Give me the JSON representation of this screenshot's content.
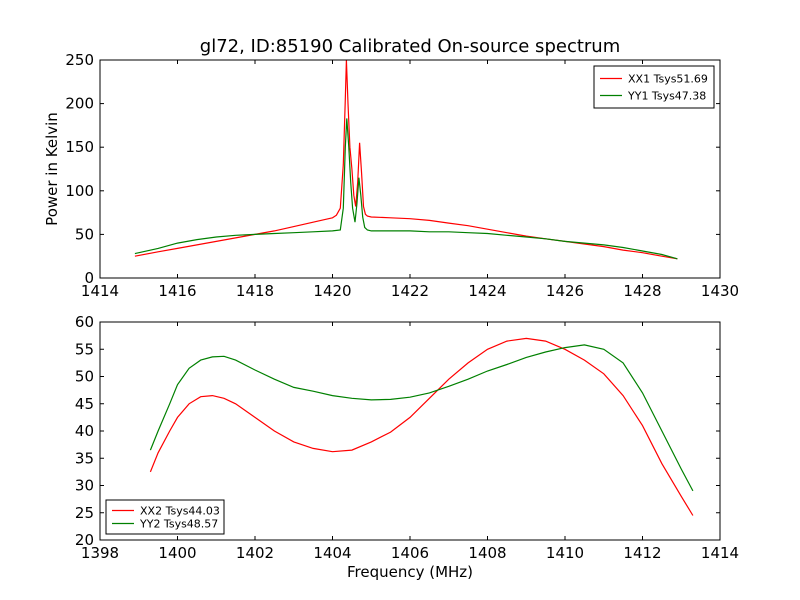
{
  "figure": {
    "title": "gl72, ID:85190 Calibrated On-source spectrum"
  },
  "chart_data": [
    {
      "type": "line",
      "title": "gl72, ID:85190 Calibrated On-source spectrum",
      "xlabel": "",
      "ylabel": "Power in Kelvin",
      "xlim": [
        1414,
        1430
      ],
      "ylim": [
        0,
        250
      ],
      "xticks": [
        "1414",
        "1416",
        "1418",
        "1420",
        "1422",
        "1424",
        "1426",
        "1428",
        "1430"
      ],
      "yticks": [
        "0",
        "50",
        "100",
        "150",
        "200",
        "250"
      ],
      "grid": false,
      "legend_position": "top-right",
      "series": [
        {
          "name": "XX1 Tsys51.69",
          "color": "#ff0000",
          "x": [
            1414.9,
            1415.5,
            1416.0,
            1416.5,
            1417.0,
            1417.5,
            1418.0,
            1418.5,
            1419.0,
            1419.5,
            1419.8,
            1420.0,
            1420.1,
            1420.2,
            1420.28,
            1420.33,
            1420.36,
            1420.4,
            1420.45,
            1420.5,
            1420.55,
            1420.6,
            1420.65,
            1420.7,
            1420.75,
            1420.8,
            1420.85,
            1420.9,
            1421.0,
            1421.5,
            1422.0,
            1422.5,
            1423.0,
            1423.5,
            1424.0,
            1424.5,
            1425.0,
            1425.5,
            1426.0,
            1426.5,
            1427.0,
            1427.5,
            1428.0,
            1428.5,
            1428.9
          ],
          "y": [
            25,
            30,
            34,
            38,
            42,
            46,
            50,
            54,
            59,
            64,
            67,
            69,
            72,
            80,
            130,
            205,
            250,
            200,
            150,
            125,
            95,
            82,
            110,
            155,
            120,
            82,
            73,
            71,
            70,
            69,
            68,
            66,
            63,
            60,
            56,
            52,
            48,
            45,
            42,
            39,
            36,
            32,
            29,
            25,
            22
          ]
        },
        {
          "name": "YY1 Tsys47.38",
          "color": "#008000",
          "x": [
            1414.9,
            1415.5,
            1416.0,
            1416.5,
            1417.0,
            1417.5,
            1418.0,
            1418.5,
            1419.0,
            1419.5,
            1420.0,
            1420.2,
            1420.28,
            1420.33,
            1420.37,
            1420.42,
            1420.47,
            1420.52,
            1420.58,
            1420.63,
            1420.68,
            1420.73,
            1420.78,
            1420.83,
            1420.9,
            1421.0,
            1421.5,
            1422.0,
            1422.5,
            1423.0,
            1423.5,
            1424.0,
            1424.5,
            1425.0,
            1425.5,
            1426.0,
            1426.5,
            1427.0,
            1427.5,
            1428.0,
            1428.5,
            1428.9
          ],
          "y": [
            28,
            34,
            40,
            44,
            47,
            49,
            50,
            51,
            52,
            53,
            54,
            55,
            80,
            150,
            183,
            150,
            110,
            80,
            64,
            85,
            115,
            95,
            70,
            58,
            55,
            54,
            54,
            54,
            53,
            53,
            52,
            51,
            49,
            47,
            45,
            42,
            40,
            38,
            35,
            31,
            27,
            22
          ]
        }
      ]
    },
    {
      "type": "line",
      "title": "",
      "xlabel": "Frequency (MHz)",
      "ylabel": "",
      "xlim": [
        1398,
        1414
      ],
      "ylim": [
        20,
        60
      ],
      "xticks": [
        "1398",
        "1400",
        "1402",
        "1404",
        "1406",
        "1408",
        "1410",
        "1412",
        "1414"
      ],
      "yticks": [
        "20",
        "25",
        "30",
        "35",
        "40",
        "45",
        "50",
        "55",
        "60"
      ],
      "grid": false,
      "legend_position": "bottom-left",
      "series": [
        {
          "name": "XX2 Tsys44.03",
          "color": "#ff0000",
          "x": [
            1399.3,
            1399.5,
            1399.8,
            1400.0,
            1400.3,
            1400.6,
            1400.9,
            1401.2,
            1401.5,
            1402.0,
            1402.5,
            1403.0,
            1403.5,
            1404.0,
            1404.5,
            1405.0,
            1405.5,
            1406.0,
            1406.5,
            1407.0,
            1407.5,
            1408.0,
            1408.5,
            1409.0,
            1409.5,
            1410.0,
            1410.5,
            1411.0,
            1411.5,
            1412.0,
            1412.5,
            1413.0,
            1413.3
          ],
          "y": [
            32.5,
            36,
            40,
            42.5,
            45,
            46.3,
            46.5,
            46,
            45,
            42.5,
            40,
            38,
            36.8,
            36.2,
            36.5,
            38,
            39.8,
            42.5,
            46,
            49.5,
            52.5,
            55,
            56.5,
            57,
            56.5,
            55,
            53,
            50.5,
            46.5,
            41,
            34,
            28,
            24.5
          ]
        },
        {
          "name": "YY2 Tsys48.57",
          "color": "#008000",
          "x": [
            1399.3,
            1399.5,
            1399.8,
            1400.0,
            1400.3,
            1400.6,
            1400.9,
            1401.2,
            1401.5,
            1402.0,
            1402.5,
            1403.0,
            1403.5,
            1404.0,
            1404.5,
            1405.0,
            1405.5,
            1406.0,
            1406.5,
            1407.0,
            1407.5,
            1408.0,
            1408.5,
            1409.0,
            1409.5,
            1410.0,
            1410.5,
            1411.0,
            1411.5,
            1412.0,
            1412.5,
            1413.0,
            1413.3
          ],
          "y": [
            36.5,
            40,
            45,
            48.5,
            51.5,
            53,
            53.6,
            53.7,
            53,
            51.2,
            49.5,
            48,
            47.3,
            46.5,
            46,
            45.7,
            45.8,
            46.2,
            47,
            48.2,
            49.5,
            51,
            52.2,
            53.5,
            54.5,
            55.3,
            55.8,
            55,
            52.5,
            47,
            40,
            33,
            29
          ]
        }
      ]
    }
  ]
}
